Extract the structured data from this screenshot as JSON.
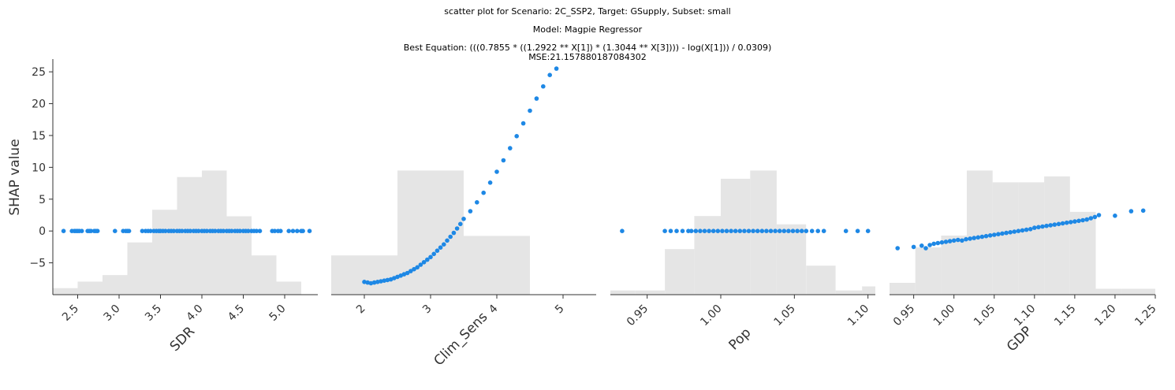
{
  "figure": {
    "title_lines": [
      "scatter plot for Scenario: 2C_SSP2, Target: GSupply, Subset: small",
      "Model: Magpie Regressor",
      "Best Equation: (((0.7855 * ((1.2922 ** X[1]) * (1.3044 ** X[3]))) - log(X[1])) / 0.0309)",
      "MSE:21.157880187084302"
    ],
    "ylabel": "SHAP value",
    "ytick_labels": [
      "25",
      "20",
      "15",
      "10",
      "5",
      "0",
      "−5"
    ],
    "point_color": "#1e88e5",
    "hist_color": "#e5e5e5"
  },
  "chart_data": [
    {
      "type": "scatter",
      "xlabel": "SDR",
      "ylabel": "SHAP value",
      "xlim": [
        2.2,
        5.4
      ],
      "ylim": [
        -10,
        27
      ],
      "xticks": [
        2.5,
        3.0,
        3.5,
        4.0,
        4.5,
        5.0
      ],
      "xtick_labels": [
        "2.5",
        "3.0",
        "3.5",
        "4.0",
        "4.5",
        "5.0"
      ],
      "yticks": [
        25,
        20,
        15,
        10,
        5,
        0,
        -5
      ],
      "points": {
        "x": [
          2.33,
          2.43,
          2.46,
          2.48,
          2.5,
          2.52,
          2.55,
          2.62,
          2.64,
          2.66,
          2.7,
          2.72,
          2.74,
          2.95,
          3.05,
          3.08,
          3.1,
          3.12,
          3.28,
          3.32,
          3.35,
          3.38,
          3.42,
          3.45,
          3.48,
          3.5,
          3.53,
          3.56,
          3.6,
          3.63,
          3.66,
          3.7,
          3.73,
          3.76,
          3.8,
          3.83,
          3.86,
          3.9,
          3.93,
          3.96,
          4.0,
          4.03,
          4.06,
          4.1,
          4.13,
          4.16,
          4.2,
          4.23,
          4.26,
          4.3,
          4.33,
          4.36,
          4.4,
          4.43,
          4.46,
          4.5,
          4.53,
          4.56,
          4.6,
          4.63,
          4.66,
          4.7,
          4.85,
          4.88,
          4.92,
          4.95,
          5.05,
          5.1,
          5.15,
          5.2,
          5.22,
          5.3
        ],
        "y": [
          0,
          0,
          0,
          0,
          0,
          0,
          0,
          0,
          0,
          0,
          0,
          0,
          0,
          0,
          0,
          0,
          0,
          0,
          0,
          0,
          0,
          0,
          0,
          0,
          0,
          0,
          0,
          0,
          0,
          0,
          0,
          0,
          0,
          0,
          0,
          0,
          0,
          0,
          0,
          0,
          0,
          0,
          0,
          0,
          0,
          0,
          0,
          0,
          0,
          0,
          0,
          0,
          0,
          0,
          0,
          0,
          0,
          0,
          0,
          0,
          0,
          0,
          0,
          0,
          0,
          0,
          0,
          0,
          0,
          0,
          0,
          0
        ]
      },
      "histogram": {
        "edges": [
          2.2,
          2.5,
          2.8,
          3.1,
          3.4,
          3.7,
          4.0,
          4.3,
          4.6,
          4.9,
          5.2,
          5.4
        ],
        "counts": [
          1,
          2,
          3,
          8,
          13,
          18,
          19,
          12,
          6,
          2,
          0
        ]
      }
    },
    {
      "type": "scatter",
      "xlabel": "Clim_Sens",
      "ylabel": "SHAP value",
      "xlim": [
        1.5,
        5.5
      ],
      "ylim": [
        -10,
        27
      ],
      "xticks": [
        2,
        3,
        4,
        5
      ],
      "xtick_labels": [
        "2",
        "3",
        "4",
        "5"
      ],
      "yticks": [
        25,
        20,
        15,
        10,
        5,
        0,
        -5
      ],
      "points": {
        "x": [
          2.0,
          2.05,
          2.1,
          2.15,
          2.2,
          2.25,
          2.3,
          2.35,
          2.4,
          2.45,
          2.5,
          2.55,
          2.6,
          2.65,
          2.7,
          2.75,
          2.8,
          2.85,
          2.9,
          2.95,
          3.0,
          3.05,
          3.1,
          3.15,
          3.2,
          3.25,
          3.3,
          3.35,
          3.4,
          3.45,
          3.5,
          3.6,
          3.7,
          3.8,
          3.9,
          4.0,
          4.1,
          4.2,
          4.3,
          4.4,
          4.5,
          4.6,
          4.7,
          4.8,
          4.9
        ],
        "y": [
          -8,
          -8.1,
          -8.2,
          -8.1,
          -8.0,
          -7.9,
          -7.8,
          -7.7,
          -7.6,
          -7.4,
          -7.2,
          -7.0,
          -6.8,
          -6.6,
          -6.3,
          -6.0,
          -5.7,
          -5.3,
          -4.9,
          -4.5,
          -4.1,
          -3.6,
          -3.1,
          -2.6,
          -2.1,
          -1.5,
          -0.9,
          -0.3,
          0.4,
          1.1,
          1.9,
          3.1,
          4.5,
          6.0,
          7.6,
          9.3,
          11.1,
          13.0,
          14.9,
          16.9,
          18.9,
          20.8,
          22.7,
          24.5,
          25.5
        ]
      },
      "histogram": {
        "edges": [
          1.5,
          2.5,
          3.5,
          4.5,
          5.5
        ],
        "counts": [
          6,
          19,
          9,
          0
        ]
      }
    },
    {
      "type": "scatter",
      "xlabel": "Pop",
      "ylabel": "SHAP value",
      "xlim": [
        0.925,
        1.105
      ],
      "ylim": [
        -10,
        27
      ],
      "xticks": [
        0.95,
        1.0,
        1.05,
        1.1
      ],
      "xtick_labels": [
        "0.95",
        "1.00",
        "1.05",
        "1.10"
      ],
      "yticks": [
        25,
        20,
        15,
        10,
        5,
        0,
        -5
      ],
      "points": {
        "x": [
          0.933,
          0.962,
          0.966,
          0.97,
          0.974,
          0.978,
          0.98,
          0.983,
          0.986,
          0.989,
          0.992,
          0.995,
          0.998,
          1.001,
          1.004,
          1.007,
          1.01,
          1.013,
          1.016,
          1.019,
          1.022,
          1.025,
          1.028,
          1.031,
          1.034,
          1.037,
          1.04,
          1.043,
          1.046,
          1.049,
          1.052,
          1.055,
          1.058,
          1.062,
          1.066,
          1.07,
          1.085,
          1.093,
          1.1
        ],
        "y": [
          0,
          0,
          0,
          0,
          0,
          0,
          0,
          0,
          0,
          0,
          0,
          0,
          0,
          0,
          0,
          0,
          0,
          0,
          0,
          0,
          0,
          0,
          0,
          0,
          0,
          0,
          0,
          0,
          0,
          0,
          0,
          0,
          0,
          0,
          0,
          0,
          0,
          0,
          0
        ]
      },
      "histogram": {
        "edges": [
          0.925,
          0.942,
          0.962,
          0.982,
          1.0,
          1.02,
          1.038,
          1.058,
          1.078,
          1.096,
          1.105
        ],
        "counts": [
          1,
          1,
          11,
          19,
          28,
          30,
          17,
          7,
          1,
          2
        ]
      }
    },
    {
      "type": "scatter",
      "xlabel": "GDP",
      "ylabel": "SHAP value",
      "xlim": [
        0.92,
        1.25
      ],
      "ylim": [
        -10,
        27
      ],
      "xticks": [
        0.95,
        1.0,
        1.05,
        1.1,
        1.15,
        1.2,
        1.25
      ],
      "xtick_labels": [
        "0.95",
        "1.00",
        "1.05",
        "1.10",
        "1.15",
        "1.20",
        "1.25"
      ],
      "yticks": [
        25,
        20,
        15,
        10,
        5,
        0,
        -5
      ],
      "points": {
        "x": [
          0.93,
          0.95,
          0.96,
          0.965,
          0.97,
          0.975,
          0.98,
          0.985,
          0.99,
          0.995,
          1.0,
          1.005,
          1.01,
          1.015,
          1.02,
          1.025,
          1.03,
          1.035,
          1.04,
          1.045,
          1.05,
          1.055,
          1.06,
          1.065,
          1.07,
          1.075,
          1.08,
          1.085,
          1.09,
          1.095,
          1.1,
          1.105,
          1.11,
          1.115,
          1.12,
          1.125,
          1.13,
          1.135,
          1.14,
          1.145,
          1.15,
          1.155,
          1.16,
          1.165,
          1.17,
          1.175,
          1.18,
          1.2,
          1.22,
          1.235
        ],
        "y": [
          -2.7,
          -2.5,
          -2.3,
          -2.7,
          -2.2,
          -2.0,
          -1.9,
          -1.8,
          -1.7,
          -1.6,
          -1.5,
          -1.4,
          -1.5,
          -1.3,
          -1.2,
          -1.1,
          -1.0,
          -0.9,
          -0.8,
          -0.7,
          -0.6,
          -0.5,
          -0.4,
          -0.3,
          -0.2,
          -0.1,
          0.0,
          0.1,
          0.2,
          0.3,
          0.5,
          0.6,
          0.7,
          0.8,
          0.9,
          1.0,
          1.1,
          1.2,
          1.3,
          1.4,
          1.5,
          1.6,
          1.7,
          1.8,
          2.0,
          2.2,
          2.5,
          2.4,
          3.1,
          3.2
        ]
      },
      "histogram": {
        "edges": [
          0.92,
          0.952,
          0.984,
          1.016,
          1.048,
          1.08,
          1.112,
          1.144,
          1.176,
          1.208,
          1.25
        ],
        "counts": [
          2,
          8,
          10,
          21,
          19,
          19,
          20,
          14,
          1,
          1
        ]
      }
    }
  ]
}
